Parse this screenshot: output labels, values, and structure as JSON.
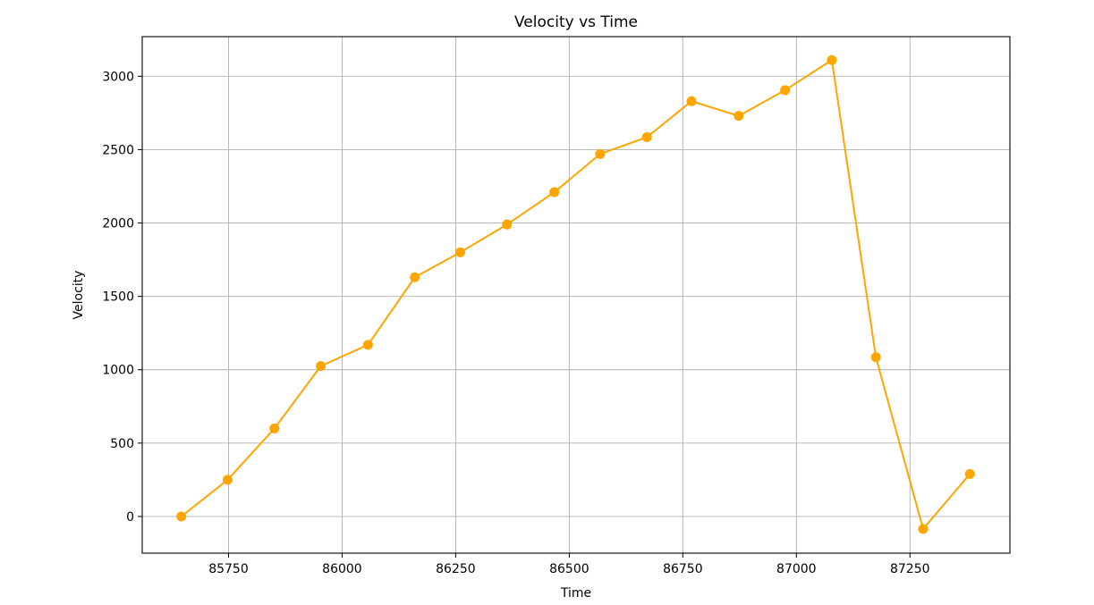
{
  "chart_data": {
    "type": "line",
    "title": "Velocity vs Time",
    "xlabel": "Time",
    "ylabel": "Velocity",
    "xlim": [
      85560,
      87470
    ],
    "ylim": [
      -250,
      3270
    ],
    "xticks": [
      85750,
      86000,
      86250,
      86500,
      86750,
      87000,
      87250
    ],
    "yticks": [
      0,
      500,
      1000,
      1500,
      2000,
      2500,
      3000
    ],
    "grid": true,
    "color": "#FFA500",
    "marker": "circle",
    "series": [
      {
        "x": [
          85646,
          85748,
          85851,
          85953,
          86057,
          86160,
          86260,
          86363,
          86467,
          86568,
          86671,
          86769,
          86873,
          86975,
          87078,
          87175,
          87279,
          87382
        ],
        "y": [
          0,
          250,
          600,
          1025,
          1170,
          1630,
          1800,
          1990,
          2210,
          2470,
          2585,
          2830,
          2730,
          2905,
          3110,
          1085,
          -85,
          290
        ]
      }
    ]
  }
}
